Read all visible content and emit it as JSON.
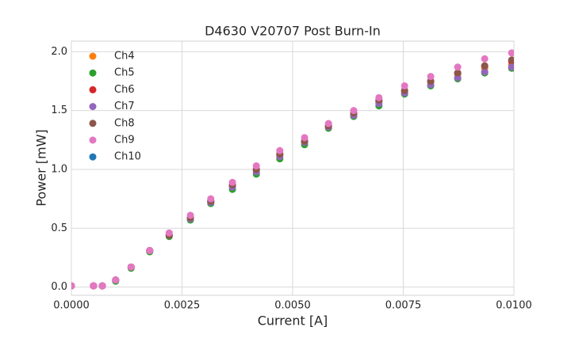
{
  "chart_data": {
    "type": "scatter",
    "title": "D4630 V20707 Post Burn-In",
    "x_label": "Current [A]",
    "y_label": "Power [mW]",
    "x": [
      0,
      0.0005,
      0.0007,
      0.001,
      0.00135,
      0.00177,
      0.00221,
      0.00269,
      0.00315,
      0.00364,
      0.00418,
      0.00471,
      0.00527,
      0.00581,
      0.00638,
      0.00695,
      0.00753,
      0.00812,
      0.00873,
      0.00934,
      0.00995
    ],
    "series": [
      {
        "name": "Ch4",
        "color": "#ff7f0e",
        "values": [
          0.01,
          0.01,
          0.01,
          0.06,
          0.17,
          0.31,
          0.44,
          0.58,
          0.72,
          0.86,
          0.99,
          1.12,
          1.23,
          1.36,
          1.46,
          1.57,
          1.66,
          1.74,
          1.81,
          1.86,
          1.89
        ]
      },
      {
        "name": "Ch5",
        "color": "#2ca02c",
        "values": [
          0.01,
          0.01,
          0.01,
          0.05,
          0.16,
          0.3,
          0.43,
          0.57,
          0.71,
          0.83,
          0.96,
          1.09,
          1.21,
          1.35,
          1.45,
          1.54,
          1.64,
          1.71,
          1.77,
          1.82,
          1.86
        ]
      },
      {
        "name": "Ch6",
        "color": "#d62728",
        "values": [
          0.01,
          0.01,
          0.01,
          0.06,
          0.17,
          0.31,
          0.44,
          0.59,
          0.73,
          0.86,
          1.0,
          1.13,
          1.24,
          1.37,
          1.47,
          1.58,
          1.67,
          1.75,
          1.82,
          1.88,
          1.92
        ]
      },
      {
        "name": "Ch7",
        "color": "#9467bd",
        "values": [
          0.01,
          0.01,
          0.01,
          0.06,
          0.17,
          0.31,
          0.44,
          0.58,
          0.72,
          0.85,
          0.98,
          1.11,
          1.23,
          1.36,
          1.46,
          1.56,
          1.65,
          1.72,
          1.78,
          1.83,
          1.87
        ]
      },
      {
        "name": "Ch8",
        "color": "#8c564b",
        "values": [
          0.01,
          0.01,
          0.01,
          0.06,
          0.17,
          0.31,
          0.44,
          0.59,
          0.73,
          0.87,
          1.0,
          1.13,
          1.24,
          1.37,
          1.48,
          1.59,
          1.67,
          1.75,
          1.82,
          1.88,
          1.93
        ]
      },
      {
        "name": "Ch9",
        "color": "#e377c2",
        "values": [
          0.01,
          0.01,
          0.01,
          0.06,
          0.17,
          0.31,
          0.46,
          0.61,
          0.75,
          0.89,
          1.03,
          1.16,
          1.27,
          1.39,
          1.5,
          1.61,
          1.71,
          1.79,
          1.87,
          1.94,
          1.99
        ]
      },
      {
        "name": "Ch10",
        "color": "#1f77b4",
        "values": [
          null,
          null,
          null,
          null,
          null,
          null,
          null,
          null,
          null,
          null,
          null,
          null,
          null,
          null,
          null,
          null,
          null,
          null,
          null,
          null,
          null
        ]
      }
    ],
    "xlim": [
      0,
      0.01
    ],
    "ylim": [
      -0.07,
      2.09
    ],
    "xticks": [
      {
        "value": 0,
        "label": "0.0000"
      },
      {
        "value": 0.0025,
        "label": "0.0025"
      },
      {
        "value": 0.005,
        "label": "0.0050"
      },
      {
        "value": 0.0075,
        "label": "0.0075"
      },
      {
        "value": 0.01,
        "label": "0.0100"
      }
    ],
    "yticks": [
      {
        "value": 0,
        "label": "0.0"
      },
      {
        "value": 0.5,
        "label": "0.5"
      },
      {
        "value": 1,
        "label": "1.0"
      },
      {
        "value": 1.5,
        "label": "1.5"
      },
      {
        "value": 2,
        "label": "2.0"
      }
    ],
    "grid": true,
    "legend": "upper left"
  }
}
